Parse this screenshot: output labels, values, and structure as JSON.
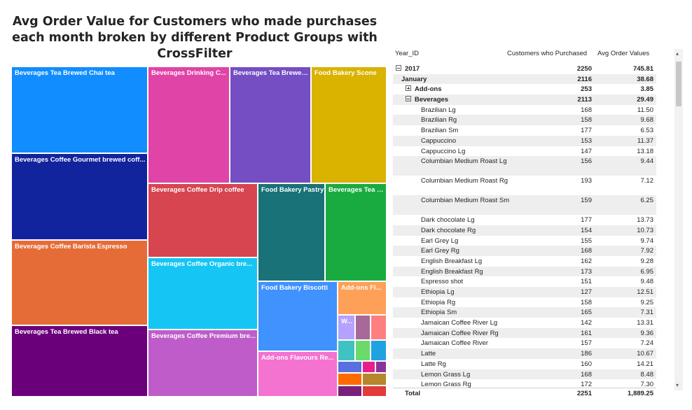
{
  "title": "Avg Order Value for Customers who made purchases each month broken by different Product Groups with CrossFilter",
  "treemap": {
    "tiles": [
      {
        "label": "Beverages Tea Brewed Chai tea",
        "color": "#118DFF"
      },
      {
        "label": "Beverages Coffee Gourmet brewed coff...",
        "color": "#12239E"
      },
      {
        "label": "Beverages Coffee Barista Espresso",
        "color": "#E66C37"
      },
      {
        "label": "Beverages Tea Brewed Black tea",
        "color": "#6B007B"
      },
      {
        "label": "Beverages Drinking C...",
        "color": "#E044A7"
      },
      {
        "label": "Beverages Tea Brewed...",
        "color": "#744EC2"
      },
      {
        "label": "Food Bakery Scone",
        "color": "#D9B300"
      },
      {
        "label": "Beverages Coffee Drip coffee",
        "color": "#D64550"
      },
      {
        "label": "Food Bakery Pastry",
        "color": "#197278"
      },
      {
        "label": "Beverages Tea B...",
        "color": "#1AAB40"
      },
      {
        "label": "Beverages Coffee Organic bre...",
        "color": "#15C6F4"
      },
      {
        "label": "Food Bakery Biscotti",
        "color": "#4092FF"
      },
      {
        "label": "Add-ons Fl...",
        "color": "#FFA058"
      },
      {
        "label": "Beverages Coffee Premium bre...",
        "color": "#BE5DC9"
      },
      {
        "label": "Add-ons Flavours Re...",
        "color": "#F472D0"
      },
      {
        "label": "W...",
        "color": "#B5A1FF"
      }
    ]
  },
  "matrix": {
    "headers": {
      "year": "Year_ID",
      "customers": "Customers who Purchased",
      "aov": "Avg Order Values"
    },
    "rows": [
      {
        "label": "2017",
        "customers": "2250",
        "aov": "745.81"
      },
      {
        "label": "January",
        "customers": "2116",
        "aov": "38.68"
      },
      {
        "label": "Add-ons",
        "customers": "253",
        "aov": "3.85"
      },
      {
        "label": "Beverages",
        "customers": "2113",
        "aov": "29.49"
      },
      {
        "label": "Brazilian Lg",
        "customers": "168",
        "aov": "11.50"
      },
      {
        "label": "Brazilian Rg",
        "customers": "158",
        "aov": "9.68"
      },
      {
        "label": "Brazilian Sm",
        "customers": "177",
        "aov": "6.53"
      },
      {
        "label": "Cappuccino",
        "customers": "153",
        "aov": "11.37"
      },
      {
        "label": "Cappuccino Lg",
        "customers": "147",
        "aov": "13.18"
      },
      {
        "label": "Columbian Medium Roast Lg",
        "customers": "156",
        "aov": "9.44"
      },
      {
        "label": "Columbian Medium Roast Rg",
        "customers": "193",
        "aov": "7.12"
      },
      {
        "label": "Columbian Medium Roast Sm",
        "customers": "159",
        "aov": "6.25"
      },
      {
        "label": "Dark chocolate Lg",
        "customers": "177",
        "aov": "13.73"
      },
      {
        "label": "Dark chocolate Rg",
        "customers": "154",
        "aov": "10.73"
      },
      {
        "label": "Earl Grey Lg",
        "customers": "155",
        "aov": "9.74"
      },
      {
        "label": "Earl Grey Rg",
        "customers": "168",
        "aov": "7.92"
      },
      {
        "label": "English Breakfast Lg",
        "customers": "162",
        "aov": "9.28"
      },
      {
        "label": "English Breakfast Rg",
        "customers": "173",
        "aov": "6.95"
      },
      {
        "label": "Espresso shot",
        "customers": "151",
        "aov": "9.48"
      },
      {
        "label": "Ethiopia Lg",
        "customers": "127",
        "aov": "12.51"
      },
      {
        "label": "Ethiopia Rg",
        "customers": "158",
        "aov": "9.25"
      },
      {
        "label": "Ethiopia Sm",
        "customers": "165",
        "aov": "7.31"
      },
      {
        "label": "Jamaican Coffee River Lg",
        "customers": "142",
        "aov": "13.31"
      },
      {
        "label": "Jamaican Coffee River Rg",
        "customers": "161",
        "aov": "9.36"
      },
      {
        "label": "Jamaican Coffee River",
        "customers": "157",
        "aov": "7.24"
      },
      {
        "label": "Latte",
        "customers": "186",
        "aov": "10.67"
      },
      {
        "label": "Latte Rg",
        "customers": "160",
        "aov": "14.21"
      },
      {
        "label": "Lemon Grass Lg",
        "customers": "168",
        "aov": "8.48"
      },
      {
        "label": "Lemon Grass Rg",
        "customers": "172",
        "aov": "7.30"
      }
    ],
    "total": {
      "label": "Total",
      "customers": "2251",
      "aov": "1,889.25"
    }
  }
}
